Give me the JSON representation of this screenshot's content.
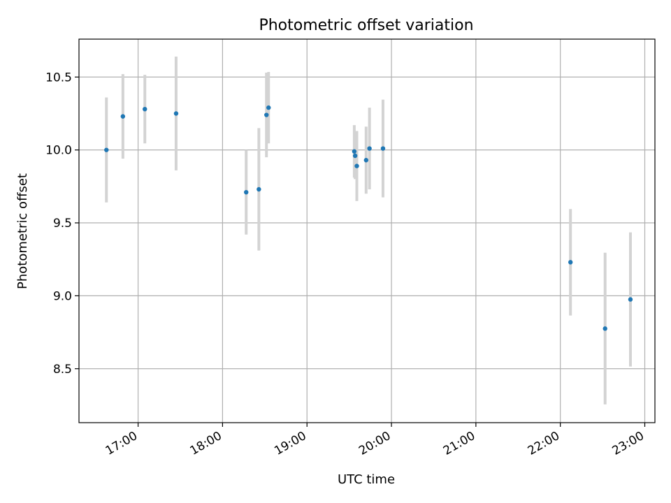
{
  "chart_data": {
    "type": "scatter",
    "title": "Photometric offset variation",
    "xlabel": "UTC time",
    "ylabel": "Photometric offset",
    "x_unit": "hours UTC",
    "xlim": [
      16.3,
      23.12
    ],
    "ylim": [
      8.13,
      10.76
    ],
    "grid": true,
    "xticks": [
      {
        "value": 17,
        "label": "17:00"
      },
      {
        "value": 18,
        "label": "18:00"
      },
      {
        "value": 19,
        "label": "19:00"
      },
      {
        "value": 20,
        "label": "20:00"
      },
      {
        "value": 21,
        "label": "21:00"
      },
      {
        "value": 22,
        "label": "22:00"
      },
      {
        "value": 23,
        "label": "23:00"
      }
    ],
    "yticks": [
      {
        "value": 8.5,
        "label": "8.5"
      },
      {
        "value": 9.0,
        "label": "9.0"
      },
      {
        "value": 9.5,
        "label": "9.5"
      },
      {
        "value": 10.0,
        "label": "10.0"
      },
      {
        "value": 10.5,
        "label": "10.5"
      }
    ],
    "marker_color": "#1f77b4",
    "errorbar_color": "#d3d3d3",
    "points": [
      {
        "x": 16.625,
        "y": 10.0,
        "err": 0.36
      },
      {
        "x": 16.82,
        "y": 10.23,
        "err": 0.29
      },
      {
        "x": 17.08,
        "y": 10.28,
        "err": 0.235
      },
      {
        "x": 17.45,
        "y": 10.25,
        "err": 0.39
      },
      {
        "x": 18.28,
        "y": 9.71,
        "err": 0.29
      },
      {
        "x": 18.43,
        "y": 9.73,
        "err": 0.42
      },
      {
        "x": 18.52,
        "y": 10.24,
        "err": 0.29
      },
      {
        "x": 18.545,
        "y": 10.29,
        "err": 0.245
      },
      {
        "x": 19.56,
        "y": 9.99,
        "err": 0.18
      },
      {
        "x": 19.57,
        "y": 9.96,
        "err": 0.16
      },
      {
        "x": 19.59,
        "y": 9.89,
        "err": 0.24
      },
      {
        "x": 19.7,
        "y": 9.93,
        "err": 0.23
      },
      {
        "x": 19.74,
        "y": 10.01,
        "err": 0.28
      },
      {
        "x": 19.9,
        "y": 10.01,
        "err": 0.335
      },
      {
        "x": 22.12,
        "y": 9.23,
        "err": 0.365
      },
      {
        "x": 22.53,
        "y": 8.775,
        "err": 0.52
      },
      {
        "x": 22.83,
        "y": 8.975,
        "err": 0.46
      }
    ]
  }
}
